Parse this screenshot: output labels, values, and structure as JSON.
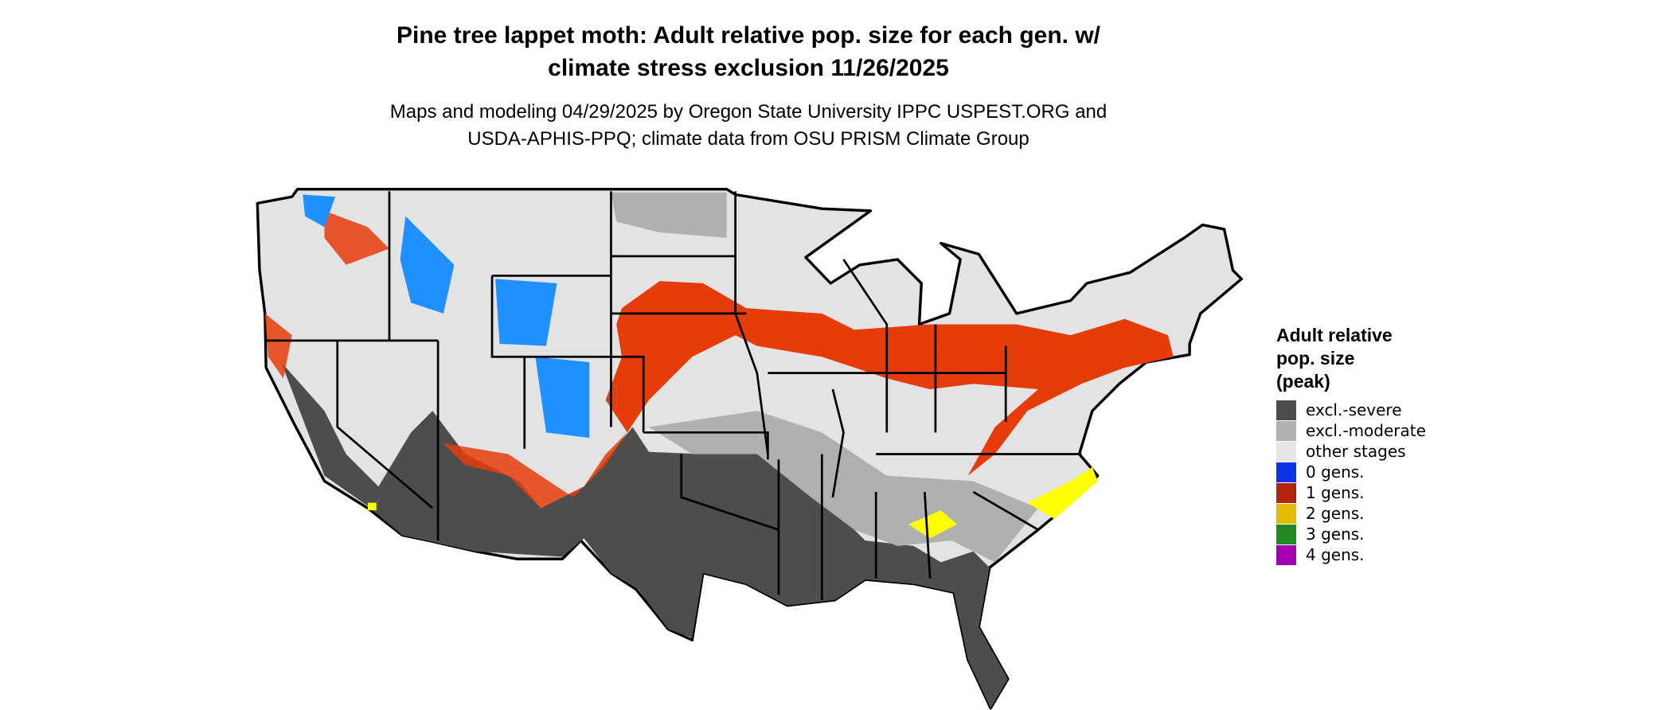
{
  "header": {
    "title_lines": [
      "Pine tree lappet moth: Adult relative pop. size for each gen. w/",
      "climate stress exclusion 11/26/2025"
    ],
    "subtitle_lines": [
      "Maps and modeling 04/29/2025 by Oregon State University IPPC USPEST.ORG and",
      "USDA-APHIS-PPQ; climate data from OSU PRISM Climate Group"
    ]
  },
  "legend": {
    "title_lines": [
      "Adult relative",
      "pop. size",
      "(peak)"
    ],
    "items": [
      {
        "label": "excl.-severe",
        "color": "#4d4d4d"
      },
      {
        "label": "excl.-moderate",
        "color": "#b0b0b0"
      },
      {
        "label": "other stages",
        "color": "#e5e5e5"
      },
      {
        "label": "0 gens.",
        "color": "#0a34e6"
      },
      {
        "label": "1 gens.",
        "color": "#b2220f"
      },
      {
        "label": "2 gens.",
        "color": "#e3bb00"
      },
      {
        "label": "3 gens.",
        "color": "#238a23"
      },
      {
        "label": "4 gens.",
        "color": "#a300b3"
      }
    ]
  }
}
